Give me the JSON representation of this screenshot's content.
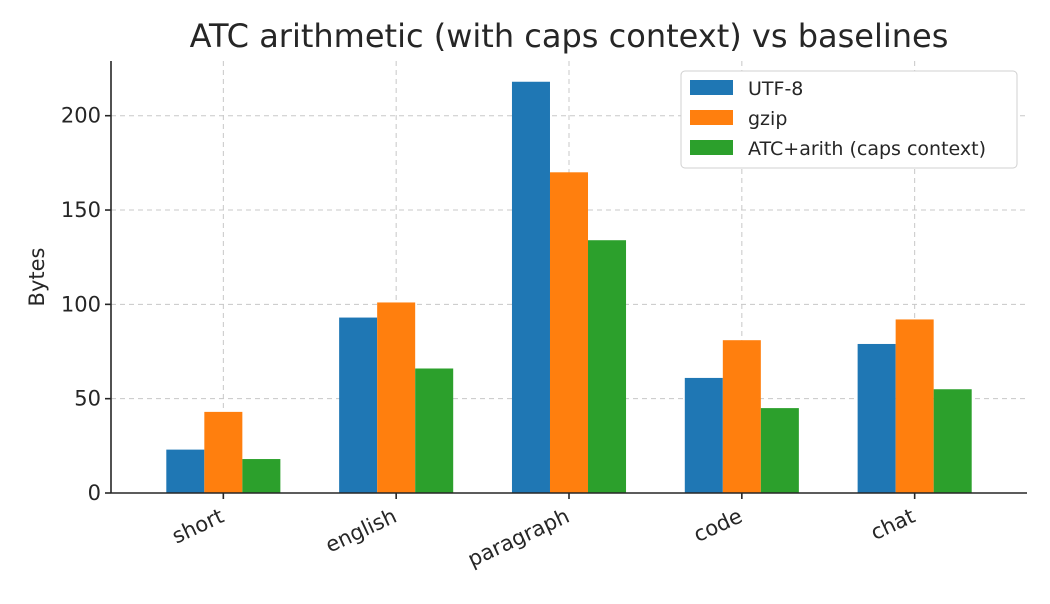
{
  "chart_data": {
    "type": "bar",
    "title": "ATC arithmetic (with caps context) vs baselines",
    "xlabel": "",
    "ylabel": "Bytes",
    "categories": [
      "short",
      "english",
      "paragraph",
      "code",
      "chat"
    ],
    "series": [
      {
        "name": "UTF-8",
        "color": "#1f77b4",
        "values": [
          23,
          93,
          218,
          61,
          79
        ]
      },
      {
        "name": "gzip",
        "color": "#ff7f0e",
        "values": [
          43,
          101,
          170,
          81,
          92
        ]
      },
      {
        "name": "ATC+arith (caps context)",
        "color": "#2ca02c",
        "values": [
          18,
          66,
          134,
          45,
          55
        ]
      }
    ],
    "ylim": [
      0,
      229
    ],
    "yticks": [
      0,
      50,
      100,
      150,
      200
    ],
    "grid": true,
    "legend_position": "top-right"
  }
}
